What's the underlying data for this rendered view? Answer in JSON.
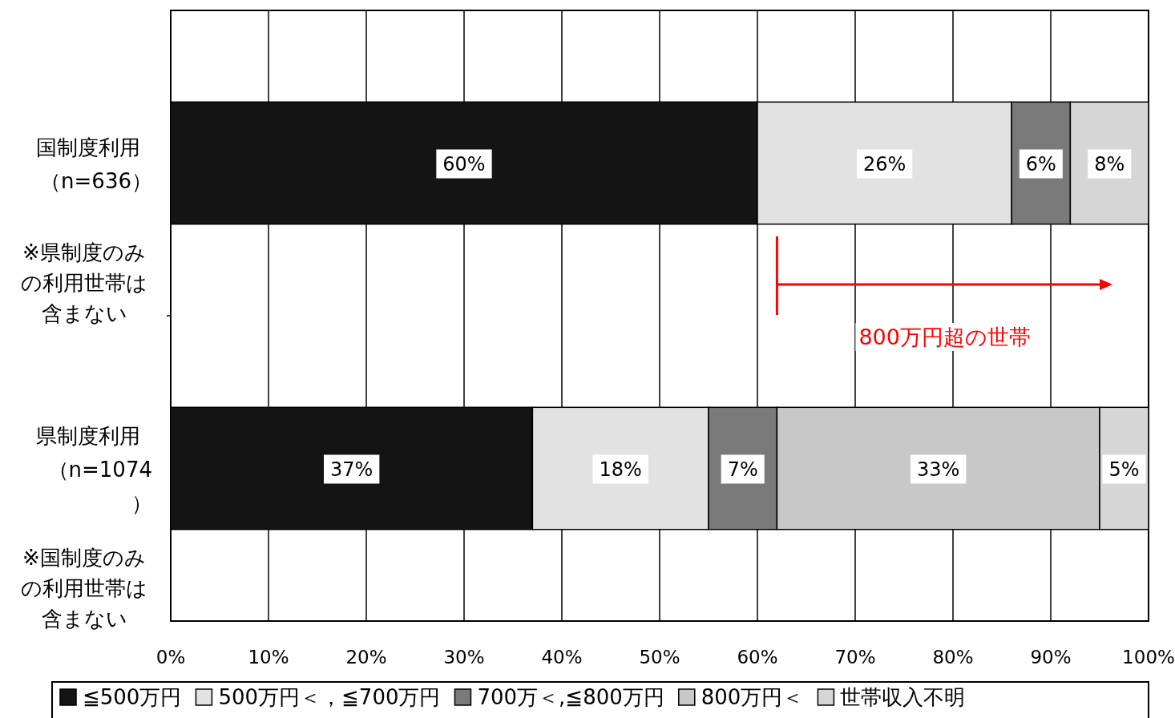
{
  "chart_data": {
    "type": "bar",
    "orientation": "horizontal",
    "stacked": true,
    "categories": [
      "国制度利用（n=636）",
      "県制度利用（n=1074）"
    ],
    "series": [
      {
        "name": "≦500万円",
        "color": "#141414",
        "values": [
          60,
          37
        ],
        "value_labels": [
          "60%",
          "37%"
        ]
      },
      {
        "name": "500万円＜，≦700万円",
        "color": "#e2e2e2",
        "values": [
          26,
          18
        ],
        "value_labels": [
          "26%",
          "18%"
        ]
      },
      {
        "name": "700万＜,≦800万円",
        "color": "#7a7a7a",
        "values": [
          6,
          7
        ],
        "value_labels": [
          "6%",
          "7%"
        ]
      },
      {
        "name": "800万円＜",
        "color": "#c8c8c8",
        "values": [
          null,
          33
        ],
        "value_labels": [
          null,
          "33%"
        ]
      },
      {
        "name": "世帯収入不明",
        "color": "#d6d6d6",
        "values": [
          8,
          5
        ],
        "value_labels": [
          "8%",
          "5%"
        ]
      }
    ],
    "xlim": [
      0,
      100
    ],
    "xticks": [
      {
        "value": 0,
        "label": "0%"
      },
      {
        "value": 10,
        "label": "10%"
      },
      {
        "value": 20,
        "label": "20%"
      },
      {
        "value": 30,
        "label": "30%"
      },
      {
        "value": 40,
        "label": "40%"
      },
      {
        "value": 50,
        "label": "50%"
      },
      {
        "value": 60,
        "label": "60%"
      },
      {
        "value": 70,
        "label": "70%"
      },
      {
        "value": 80,
        "label": "80%"
      },
      {
        "value": 90,
        "label": "90%"
      },
      {
        "value": 100,
        "label": "100%"
      }
    ],
    "grid": "x",
    "legend": "bottom",
    "annotations": [
      {
        "text": "※県制度のみの利用世帯は含まない"
      },
      {
        "text": "※国制度のみの利用世帯は含まない"
      },
      "800万円超の世帯"
    ]
  }
}
